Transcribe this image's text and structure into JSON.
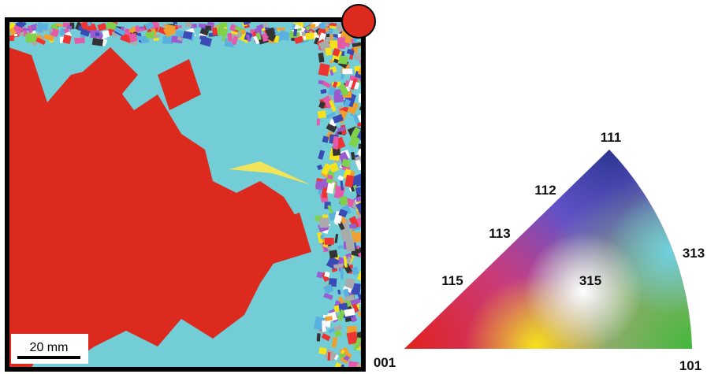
{
  "map": {
    "scale_bar": "20 mm"
  },
  "ipf_triangle": {
    "corner_001": "001",
    "corner_101": "101",
    "corner_111": "111",
    "labels": {
      "p112": "112",
      "p113": "113",
      "p115": "115",
      "p313": "313",
      "p315": "315"
    }
  }
}
